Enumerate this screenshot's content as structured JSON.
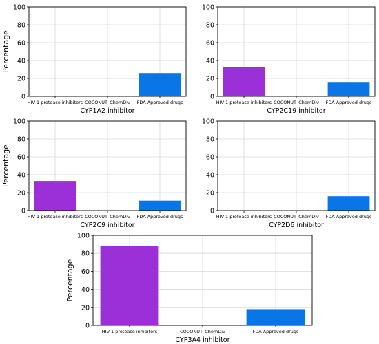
{
  "chart_data": [
    {
      "type": "bar",
      "categories": [
        "HIV-1 protease inhibitors",
        "COCONUT_ChemDiv",
        "FDA-Approved drugs"
      ],
      "values": [
        0,
        0,
        26
      ],
      "colors": [
        "#9b30d9",
        "#9b30d9",
        "#0a75e6"
      ],
      "xlabel": "CYP1A2 inhibitor",
      "ylabel": "Percentage",
      "ylim": [
        0,
        100
      ],
      "yticks": [
        0,
        20,
        40,
        60,
        80,
        100
      ],
      "grid": true
    },
    {
      "type": "bar",
      "categories": [
        "HIV-1 protease inhibitors",
        "COCONUT_ChemDiv",
        "FDA-Approved drugs"
      ],
      "values": [
        33,
        0,
        16
      ],
      "colors": [
        "#9b30d9",
        "#9b30d9",
        "#0a75e6"
      ],
      "xlabel": "CYP2C19 inhibitor",
      "ylabel": "",
      "ylim": [
        0,
        100
      ],
      "yticks": [
        0,
        20,
        40,
        60,
        80,
        100
      ],
      "grid": true
    },
    {
      "type": "bar",
      "categories": [
        "HIV-1 protease inhibitors",
        "COCONUT_ChemDiv",
        "FDA-Approved drugs"
      ],
      "values": [
        33,
        0,
        11
      ],
      "colors": [
        "#9b30d9",
        "#9b30d9",
        "#0a75e6"
      ],
      "xlabel": "CYP2C9 inhibitor",
      "ylabel": "Percentage",
      "ylim": [
        0,
        100
      ],
      "yticks": [
        0,
        20,
        40,
        60,
        80,
        100
      ],
      "grid": true
    },
    {
      "type": "bar",
      "categories": [
        "HIV-1 protease inhibitors",
        "COCONUT_ChemDiv",
        "FDA-Approved drugs"
      ],
      "values": [
        0,
        0,
        16
      ],
      "colors": [
        "#9b30d9",
        "#9b30d9",
        "#0a75e6"
      ],
      "xlabel": "CYP2D6 inhibitor",
      "ylabel": "",
      "ylim": [
        0,
        100
      ],
      "yticks": [
        0,
        20,
        40,
        60,
        80,
        100
      ],
      "grid": true
    },
    {
      "type": "bar",
      "categories": [
        "HIV-1 protease inhibitors",
        "COCONUT_ChemDiv",
        "FDA-Approved drugs"
      ],
      "values": [
        88,
        0,
        18
      ],
      "colors": [
        "#9b30d9",
        "#9b30d9",
        "#0a75e6"
      ],
      "xlabel": "CYP3A4 inhibitor",
      "ylabel": "Percentage",
      "ylim": [
        0,
        100
      ],
      "yticks": [
        0,
        20,
        40,
        60,
        80,
        100
      ],
      "grid": true
    }
  ]
}
